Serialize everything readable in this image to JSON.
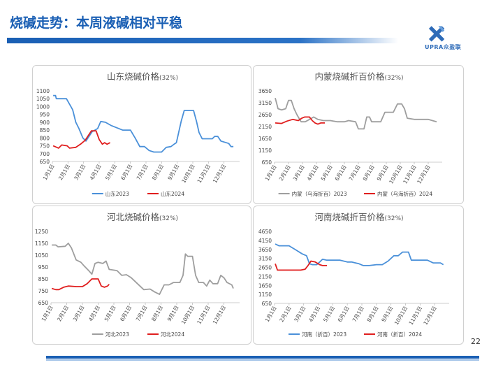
{
  "slide": {
    "title": "烧碱走势：本周液碱相对平稳",
    "logo_text": "UPRA众盈联",
    "page_number": "22",
    "brand_color": "#1a5fb4"
  },
  "chart_data": [
    {
      "id": "shandong",
      "type": "line",
      "title": "山东烧碱价格",
      "title_suffix": "(32%)",
      "y_ticks": [
        650,
        700,
        750,
        800,
        850,
        900,
        950,
        1000,
        1050,
        1100
      ],
      "ylim": [
        650,
        1100
      ],
      "x_ticks": [
        "1月1日",
        "2月1日",
        "3月1日",
        "4月1日",
        "5月1日",
        "6月1日",
        "7月1日",
        "8月1日",
        "9月1日",
        "10月1日",
        "11月1日",
        "12月1日"
      ],
      "xlim": [
        0,
        12
      ],
      "series": [
        {
          "name": "山东2023",
          "color": "#4a90d9",
          "points": [
            [
              0.05,
              1070
            ],
            [
              0.2,
              1070
            ],
            [
              0.25,
              1050
            ],
            [
              0.9,
              1050
            ],
            [
              1.3,
              980
            ],
            [
              1.5,
              900
            ],
            [
              1.7,
              860
            ],
            [
              1.95,
              800
            ],
            [
              2.15,
              780
            ],
            [
              2.55,
              840
            ],
            [
              2.9,
              860
            ],
            [
              3.1,
              905
            ],
            [
              3.4,
              900
            ],
            [
              3.75,
              880
            ],
            [
              4.5,
              850
            ],
            [
              5.0,
              850
            ],
            [
              5.3,
              800
            ],
            [
              5.6,
              745
            ],
            [
              5.9,
              745
            ],
            [
              6.2,
              720
            ],
            [
              6.5,
              710
            ],
            [
              7.0,
              710
            ],
            [
              7.3,
              740
            ],
            [
              7.6,
              745
            ],
            [
              7.8,
              760
            ],
            [
              7.95,
              770
            ],
            [
              8.25,
              905
            ],
            [
              8.45,
              975
            ],
            [
              9.05,
              975
            ],
            [
              9.25,
              900
            ],
            [
              9.4,
              835
            ],
            [
              9.6,
              795
            ],
            [
              10.25,
              795
            ],
            [
              10.4,
              810
            ],
            [
              10.6,
              810
            ],
            [
              10.8,
              780
            ],
            [
              11.3,
              765
            ],
            [
              11.45,
              745
            ],
            [
              11.6,
              745
            ]
          ]
        },
        {
          "name": "山东2024",
          "color": "#e01e1e",
          "points": [
            [
              0.05,
              750
            ],
            [
              0.4,
              735
            ],
            [
              0.6,
              755
            ],
            [
              0.95,
              750
            ],
            [
              1.1,
              735
            ],
            [
              1.5,
              740
            ],
            [
              1.8,
              760
            ],
            [
              2.1,
              785
            ],
            [
              2.4,
              830
            ],
            [
              2.5,
              845
            ],
            [
              2.8,
              845
            ],
            [
              3.0,
              790
            ],
            [
              3.2,
              760
            ],
            [
              3.35,
              770
            ],
            [
              3.5,
              760
            ],
            [
              3.7,
              770
            ]
          ]
        }
      ]
    },
    {
      "id": "neimenggu",
      "type": "line",
      "title": "内蒙烧碱折百价格",
      "title_suffix": "(32%)",
      "y_ticks": [
        650,
        1150,
        1650,
        2150,
        2650,
        3150,
        3650
      ],
      "ylim": [
        650,
        3650
      ],
      "x_ticks": [
        "1月1日",
        "2月1日",
        "3月1日",
        "4月1日",
        "5月1日",
        "6月1日",
        "7月1日",
        "8月1日",
        "9月1日",
        "10月1日",
        "11月1日",
        "12月1日"
      ],
      "xlim": [
        0,
        12
      ],
      "series": [
        {
          "name": "内蒙（乌海折百）2023",
          "color": "#9e9e9e",
          "points": [
            [
              0.05,
              3350
            ],
            [
              0.25,
              2900
            ],
            [
              0.5,
              2850
            ],
            [
              0.8,
              2900
            ],
            [
              1.0,
              3250
            ],
            [
              1.2,
              3250
            ],
            [
              1.4,
              2900
            ],
            [
              1.6,
              2650
            ],
            [
              1.9,
              2350
            ],
            [
              2.2,
              2350
            ],
            [
              2.5,
              2450
            ],
            [
              2.8,
              2550
            ],
            [
              3.1,
              2450
            ],
            [
              3.5,
              2400
            ],
            [
              4.0,
              2400
            ],
            [
              4.5,
              2350
            ],
            [
              5.0,
              2350
            ],
            [
              5.3,
              2400
            ],
            [
              5.8,
              2350
            ],
            [
              6.0,
              2050
            ],
            [
              6.4,
              2050
            ],
            [
              6.6,
              2550
            ],
            [
              6.8,
              2550
            ],
            [
              6.95,
              2350
            ],
            [
              7.6,
              2350
            ],
            [
              7.9,
              2750
            ],
            [
              8.5,
              2750
            ],
            [
              8.8,
              3100
            ],
            [
              9.1,
              3100
            ],
            [
              9.3,
              2900
            ],
            [
              9.5,
              2500
            ],
            [
              10.0,
              2450
            ],
            [
              10.5,
              2450
            ],
            [
              11.0,
              2450
            ],
            [
              11.3,
              2400
            ],
            [
              11.6,
              2350
            ]
          ]
        },
        {
          "name": "内蒙（乌海折百）2024",
          "color": "#e01e1e",
          "points": [
            [
              0.05,
              2300
            ],
            [
              0.5,
              2280
            ],
            [
              0.9,
              2380
            ],
            [
              1.3,
              2450
            ],
            [
              1.7,
              2400
            ],
            [
              1.95,
              2500
            ],
            [
              2.15,
              2550
            ],
            [
              2.5,
              2550
            ],
            [
              2.7,
              2400
            ],
            [
              2.9,
              2300
            ],
            [
              3.1,
              2250
            ],
            [
              3.3,
              2300
            ],
            [
              3.6,
              2300
            ]
          ]
        }
      ]
    },
    {
      "id": "hebei",
      "type": "line",
      "title": "河北烧碱价格",
      "title_suffix": "(32%)",
      "y_ticks": [
        650,
        750,
        850,
        950,
        1050,
        1150,
        1250
      ],
      "ylim": [
        650,
        1250
      ],
      "x_ticks": [
        "1月1日",
        "2月1日",
        "3月1日",
        "4月1日",
        "5月1日",
        "6月1日",
        "7月1日",
        "8月1日",
        "9月1日",
        "10月1日",
        "11月1日",
        "12月1日"
      ],
      "xlim": [
        0,
        12
      ],
      "series": [
        {
          "name": "河北2023",
          "color": "#9e9e9e",
          "points": [
            [
              0.05,
              1135
            ],
            [
              0.3,
              1135
            ],
            [
              0.45,
              1120
            ],
            [
              0.9,
              1125
            ],
            [
              1.1,
              1150
            ],
            [
              1.3,
              1110
            ],
            [
              1.6,
              1010
            ],
            [
              1.9,
              990
            ],
            [
              2.1,
              960
            ],
            [
              2.4,
              920
            ],
            [
              2.6,
              890
            ],
            [
              2.8,
              980
            ],
            [
              3.0,
              990
            ],
            [
              3.3,
              980
            ],
            [
              3.5,
              1000
            ],
            [
              3.7,
              930
            ],
            [
              4.2,
              920
            ],
            [
              4.5,
              880
            ],
            [
              4.8,
              885
            ],
            [
              5.1,
              860
            ],
            [
              5.5,
              810
            ],
            [
              5.9,
              760
            ],
            [
              6.3,
              765
            ],
            [
              6.6,
              740
            ],
            [
              6.9,
              720
            ],
            [
              7.2,
              800
            ],
            [
              7.5,
              800
            ],
            [
              7.8,
              820
            ],
            [
              8.2,
              820
            ],
            [
              8.4,
              880
            ],
            [
              8.55,
              1060
            ],
            [
              8.7,
              1040
            ],
            [
              9.0,
              1040
            ],
            [
              9.2,
              880
            ],
            [
              9.4,
              820
            ],
            [
              9.7,
              820
            ],
            [
              9.9,
              790
            ],
            [
              10.1,
              840
            ],
            [
              10.3,
              810
            ],
            [
              10.6,
              810
            ],
            [
              10.8,
              880
            ],
            [
              11.0,
              860
            ],
            [
              11.2,
              820
            ],
            [
              11.5,
              800
            ],
            [
              11.6,
              770
            ]
          ]
        },
        {
          "name": "河北2024",
          "color": "#e01e1e",
          "points": [
            [
              0.05,
              770
            ],
            [
              0.3,
              760
            ],
            [
              0.5,
              760
            ],
            [
              0.8,
              780
            ],
            [
              1.1,
              790
            ],
            [
              1.6,
              785
            ],
            [
              2.0,
              785
            ],
            [
              2.3,
              810
            ],
            [
              2.6,
              850
            ],
            [
              3.0,
              850
            ],
            [
              3.2,
              790
            ],
            [
              3.4,
              780
            ],
            [
              3.6,
              790
            ],
            [
              3.7,
              805
            ]
          ]
        }
      ]
    },
    {
      "id": "henan",
      "type": "line",
      "title": "河南烧碱折百价格",
      "title_suffix": "(32%)",
      "y_ticks": [
        650,
        1150,
        1650,
        2150,
        2650,
        3150,
        3650,
        4150,
        4650
      ],
      "ylim": [
        650,
        4650
      ],
      "x_ticks": [
        "1月1日",
        "2月1日",
        "3月1日",
        "4月1日",
        "5月1日",
        "6月1日",
        "7月1日",
        "8月1日",
        "9月1日",
        "10月1日",
        "11月1日",
        "12月1日"
      ],
      "xlim": [
        0,
        12
      ],
      "series": [
        {
          "name": "河南（折百）2023",
          "color": "#4a90d9",
          "points": [
            [
              0.05,
              3950
            ],
            [
              0.3,
              3850
            ],
            [
              1.0,
              3850
            ],
            [
              1.5,
              3600
            ],
            [
              1.9,
              3400
            ],
            [
              2.2,
              3300
            ],
            [
              2.4,
              2850
            ],
            [
              2.6,
              2800
            ],
            [
              2.9,
              2800
            ],
            [
              3.1,
              2950
            ],
            [
              3.3,
              3100
            ],
            [
              3.6,
              3050
            ],
            [
              4.5,
              3050
            ],
            [
              5.0,
              2950
            ],
            [
              5.3,
              2950
            ],
            [
              5.8,
              2850
            ],
            [
              6.1,
              2750
            ],
            [
              6.5,
              2750
            ],
            [
              7.0,
              2800
            ],
            [
              7.4,
              2800
            ],
            [
              7.8,
              3000
            ],
            [
              8.2,
              3300
            ],
            [
              8.5,
              3300
            ],
            [
              8.8,
              3500
            ],
            [
              9.2,
              3500
            ],
            [
              9.4,
              3050
            ],
            [
              10.5,
              3050
            ],
            [
              10.9,
              2900
            ],
            [
              11.4,
              2900
            ],
            [
              11.6,
              2800
            ]
          ]
        },
        {
          "name": "河南（折百）2024",
          "color": "#e01e1e",
          "points": [
            [
              0.05,
              2850
            ],
            [
              0.2,
              2500
            ],
            [
              0.6,
              2500
            ],
            [
              1.2,
              2500
            ],
            [
              1.8,
              2500
            ],
            [
              2.1,
              2550
            ],
            [
              2.3,
              2750
            ],
            [
              2.5,
              3000
            ],
            [
              2.8,
              2950
            ],
            [
              3.1,
              2800
            ],
            [
              3.3,
              2750
            ],
            [
              3.6,
              2750
            ]
          ]
        }
      ]
    }
  ]
}
